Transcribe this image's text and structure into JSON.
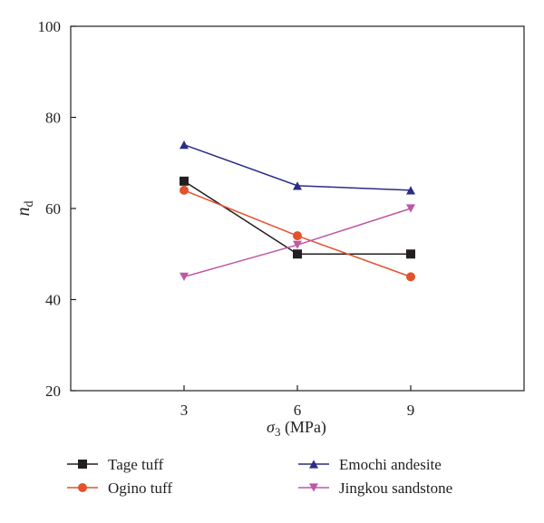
{
  "chart_data": {
    "type": "line",
    "x": [
      3,
      6,
      9
    ],
    "xlim": [
      0,
      12
    ],
    "ylim": [
      20,
      100
    ],
    "xticks": [
      3,
      6,
      9
    ],
    "yticks": [
      20,
      40,
      60,
      80,
      100
    ],
    "xlabel": {
      "symbol": "σ",
      "subscript": "3",
      "unit": " (MPa)"
    },
    "ylabel": {
      "symbol": "n",
      "subscript": "d"
    },
    "grid": false,
    "legend_position": "bottom",
    "series": [
      {
        "name": "Tage tuff",
        "values": [
          66,
          50,
          50
        ],
        "color": "#231f20",
        "marker": "square"
      },
      {
        "name": "Ogino tuff",
        "values": [
          64,
          54,
          45
        ],
        "color": "#e2522d",
        "marker": "circle"
      },
      {
        "name": "Emochi andesite",
        "values": [
          74,
          65,
          64
        ],
        "color": "#2b2d86",
        "marker": "triangle-up"
      },
      {
        "name": "Jingkou sandstone",
        "values": [
          45,
          52,
          60
        ],
        "color": "#c057a4",
        "marker": "triangle-down"
      }
    ]
  }
}
